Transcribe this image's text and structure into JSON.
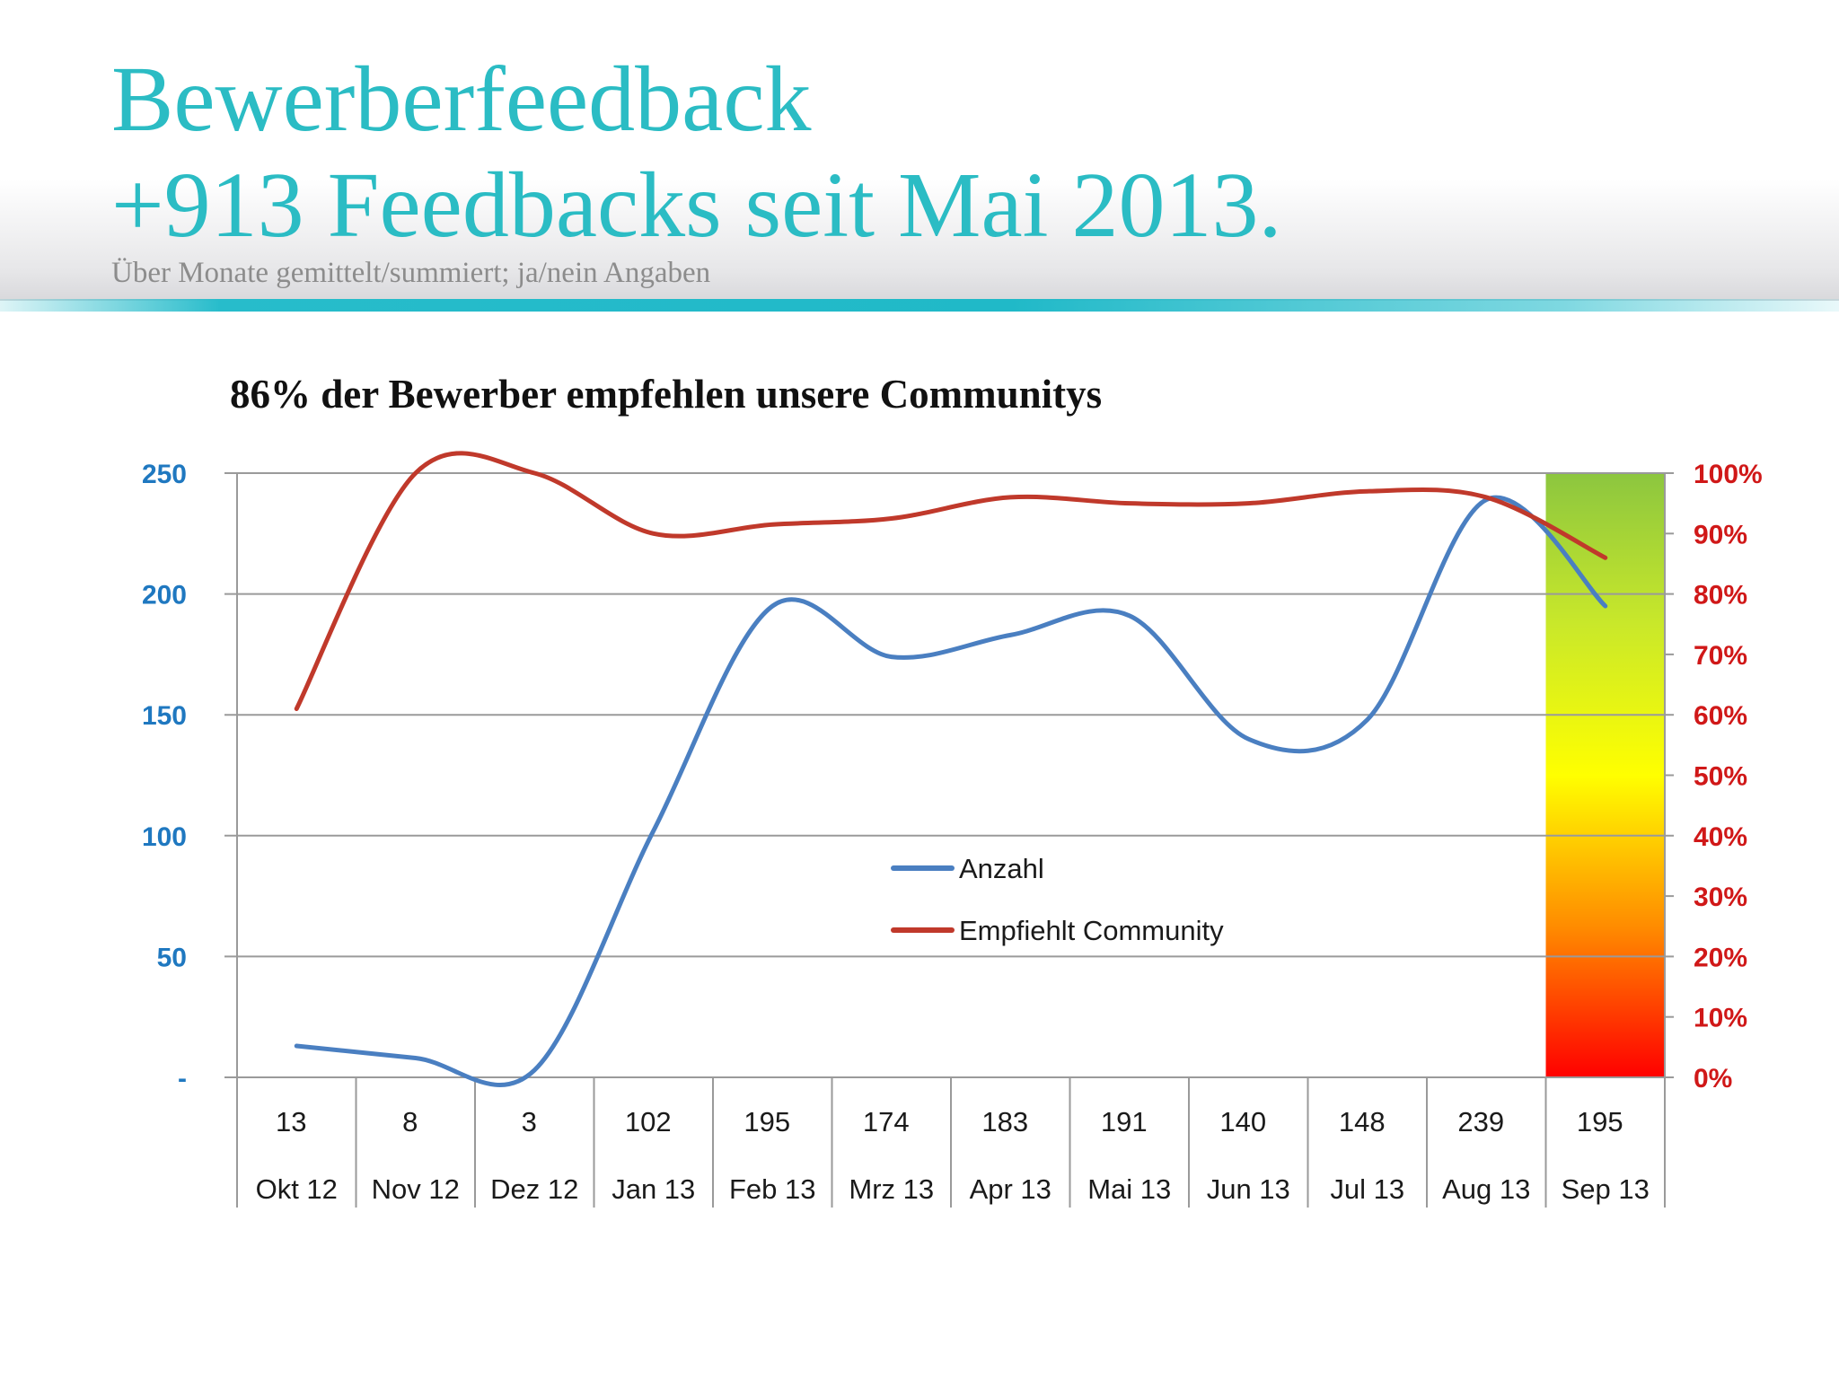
{
  "header": {
    "title_line1": "Bewerberfeedback",
    "title_line2": "+913 Feedbacks seit Mai 2013.",
    "subtitle": "Über Monate gemittelt/summiert; ja/nein Angaben"
  },
  "colors": {
    "title": "#2bbcc4",
    "series_anzahl": "#4a7fc1",
    "series_empfiehlt": "#c0392b",
    "axis_left": "#1f78c0",
    "axis_right": "#d01818"
  },
  "chart_data": {
    "type": "line",
    "title": "86% der Bewerber empfehlen unsere Communitys",
    "categories": [
      "Okt 12",
      "Nov 12",
      "Dez 12",
      "Jan 13",
      "Feb 13",
      "Mrz 13",
      "Apr 13",
      "Mai 13",
      "Jun 13",
      "Jul 13",
      "Aug 13",
      "Sep 13"
    ],
    "table_values": [
      "13",
      "8",
      "3",
      "102",
      "195",
      "174",
      "183",
      "191",
      "140",
      "148",
      "239",
      "195"
    ],
    "y_left": {
      "ylim": [
        0,
        250
      ],
      "ticks": [
        "-",
        "50",
        "100",
        "150",
        "200",
        "250"
      ]
    },
    "y_right": {
      "ylim": [
        0,
        100
      ],
      "ticks": [
        "0%",
        "10%",
        "20%",
        "30%",
        "40%",
        "50%",
        "60%",
        "70%",
        "80%",
        "90%",
        "100%"
      ]
    },
    "series": [
      {
        "name": "Anzahl",
        "axis": "left",
        "values": [
          13,
          8,
          3,
          102,
          195,
          174,
          183,
          191,
          140,
          148,
          239,
          195
        ]
      },
      {
        "name": "Empfiehlt Community",
        "axis": "right",
        "values": [
          61,
          100,
          100,
          90,
          91.5,
          92.5,
          96,
          95,
          95,
          97,
          96,
          86
        ]
      }
    ],
    "gradient_band": {
      "category": "Sep 13",
      "stops": [
        "#ff0000",
        "#ff8c00",
        "#ffff00",
        "#c9e82a",
        "#8cc63f"
      ]
    },
    "grid": true,
    "legend": "center"
  }
}
